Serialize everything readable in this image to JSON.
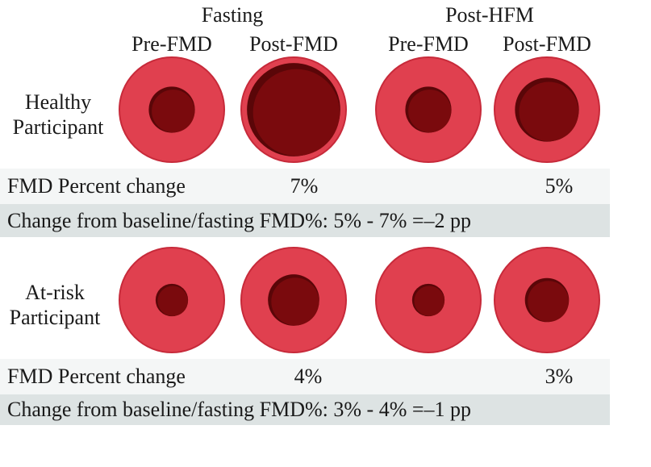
{
  "groups": {
    "fasting": "Fasting",
    "post_hfm": "Post-HFM"
  },
  "columns": [
    "Pre-FMD",
    "Post-FMD",
    "Pre-FMD",
    "Post-FMD"
  ],
  "rows": [
    {
      "label_line1": "Healthy",
      "label_line2": "Participant",
      "fmd_label": "FMD Percent change",
      "fasting_pct": "7%",
      "post_hfm_pct": "5%",
      "summary": "Change from baseline/fasting FMD%: 5% - 7% =–2 pp",
      "lumen_ratios": [
        0.44,
        0.89,
        0.44,
        0.61
      ]
    },
    {
      "label_line1": "At-risk",
      "label_line2": "Participant",
      "fmd_label": "FMD Percent change",
      "fasting_pct": "4%",
      "post_hfm_pct": "3%",
      "summary": "Change from baseline/fasting FMD%: 3% - 4% =–1 pp",
      "lumen_ratios": [
        0.31,
        0.49,
        0.31,
        0.42
      ]
    }
  ],
  "colors": {
    "vessel_wall": "#e0404f",
    "vessel_edge": "#c72a3a",
    "lumen": "#7a0a0d",
    "lumen_shadow": "#5a0608",
    "band_light": "#f4f6f6",
    "band_gray": "#dde3e3"
  }
}
